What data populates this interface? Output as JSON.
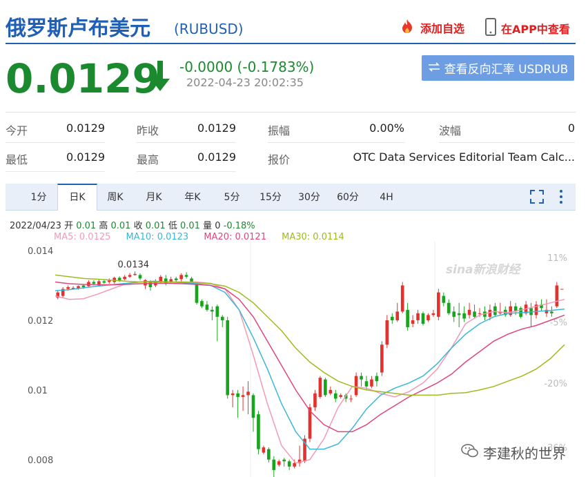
{
  "header": {
    "title": "俄罗斯卢布美元",
    "code": "(RUBUSD)",
    "add_watchlist": "添加自选",
    "view_in_app": "在APP中查看"
  },
  "quote": {
    "price": "0.0129",
    "change": "-0.0000 (-0.1783%)",
    "datetime": "2022-04-23 20:02:35",
    "reverse_button": "查看反向汇率 USDRUB",
    "down_color": "#1b8a2e"
  },
  "stats": {
    "open_label": "今开",
    "open": "0.0129",
    "prev_close_label": "昨收",
    "prev_close": "0.0129",
    "amplitude_label": "振幅",
    "amplitude": "0.00%",
    "wave_label": "波幅",
    "wave": "0",
    "low_label": "最低",
    "low": "0.0129",
    "high_label": "最高",
    "high": "0.0129",
    "quote_label": "报价",
    "quote_source": "OTC Data Services Editorial Team Calc..."
  },
  "tabs": [
    "1分",
    "日K",
    "周K",
    "月K",
    "年K",
    "5分",
    "15分",
    "30分",
    "60分",
    "4H"
  ],
  "active_tab": "日K",
  "info": {
    "date": "2022/04/23",
    "open_label": "开",
    "open": "0.01",
    "high_label": "高",
    "high": "0.01",
    "close_label": "收",
    "close": "0.01",
    "low_label": "低",
    "low": "0.01",
    "vol_label": "量",
    "vol": "0",
    "pct": "-0.18%"
  },
  "ma": {
    "ma5": "MA5: 0.0125",
    "ma10": "MA10: 0.0123",
    "ma20": "MA20: 0.0121",
    "ma30": "MA30: 0.0114",
    "ma5_color": "#f29ab4",
    "ma10_color": "#3ab7d6",
    "ma20_color": "#e0457b",
    "ma30_color": "#9dbb1e"
  },
  "watermarks": {
    "sina": "sina新浪财经",
    "wechat": "李建秋的世界"
  },
  "chart_data": {
    "type": "candlestick",
    "title": "",
    "ylim": [
      0.0075,
      0.0141
    ],
    "y_ticks": [
      "0.014",
      "0.012",
      "0.01",
      "0.008"
    ],
    "y_tick_values": [
      0.014,
      0.012,
      0.01,
      0.008
    ],
    "pct_ticks": [
      "11%",
      "-5%",
      "-20%",
      "-36%"
    ],
    "pct_tick_values": [
      0.0138,
      0.01195,
      0.0102,
      0.00835
    ],
    "peak_label": "0.0134",
    "peak_value": 0.0134,
    "peak_index": 15,
    "up_color": "#e3322e",
    "down_color": "#18a51d",
    "candles": [
      {
        "o": 0.01265,
        "c": 0.0128,
        "h": 0.01285,
        "l": 0.0126
      },
      {
        "o": 0.0127,
        "c": 0.0129,
        "h": 0.01295,
        "l": 0.01265
      },
      {
        "o": 0.0129,
        "c": 0.01295,
        "h": 0.013,
        "l": 0.01285
      },
      {
        "o": 0.0129,
        "c": 0.01293,
        "h": 0.01298,
        "l": 0.01288
      },
      {
        "o": 0.01292,
        "c": 0.01298,
        "h": 0.013,
        "l": 0.01288
      },
      {
        "o": 0.013,
        "c": 0.01295,
        "h": 0.01302,
        "l": 0.0129
      },
      {
        "o": 0.01298,
        "c": 0.0131,
        "h": 0.01315,
        "l": 0.01295
      },
      {
        "o": 0.0131,
        "c": 0.01305,
        "h": 0.01315,
        "l": 0.013
      },
      {
        "o": 0.013,
        "c": 0.01312,
        "h": 0.01318,
        "l": 0.01298
      },
      {
        "o": 0.01312,
        "c": 0.01308,
        "h": 0.01318,
        "l": 0.01305
      },
      {
        "o": 0.0131,
        "c": 0.01314,
        "h": 0.0132,
        "l": 0.01305
      },
      {
        "o": 0.0131,
        "c": 0.01322,
        "h": 0.01325,
        "l": 0.01305
      },
      {
        "o": 0.01322,
        "c": 0.01315,
        "h": 0.01326,
        "l": 0.0131
      },
      {
        "o": 0.01318,
        "c": 0.01325,
        "h": 0.0133,
        "l": 0.01315
      },
      {
        "o": 0.01325,
        "c": 0.0133,
        "h": 0.01336,
        "l": 0.01322
      },
      {
        "o": 0.0133,
        "c": 0.01333,
        "h": 0.0134,
        "l": 0.01328
      },
      {
        "o": 0.0133,
        "c": 0.0132,
        "h": 0.01335,
        "l": 0.01315
      },
      {
        "o": 0.013,
        "c": 0.01315,
        "h": 0.01318,
        "l": 0.0129
      },
      {
        "o": 0.0131,
        "c": 0.01295,
        "h": 0.01315,
        "l": 0.01285
      },
      {
        "o": 0.013,
        "c": 0.0131,
        "h": 0.01318,
        "l": 0.01295
      },
      {
        "o": 0.0131,
        "c": 0.01325,
        "h": 0.0133,
        "l": 0.01305
      },
      {
        "o": 0.0132,
        "c": 0.01305,
        "h": 0.0133,
        "l": 0.013
      },
      {
        "o": 0.0131,
        "c": 0.01318,
        "h": 0.01325,
        "l": 0.01305
      },
      {
        "o": 0.0132,
        "c": 0.01315,
        "h": 0.01325,
        "l": 0.01308
      },
      {
        "o": 0.01318,
        "c": 0.0133,
        "h": 0.01335,
        "l": 0.01312
      },
      {
        "o": 0.0133,
        "c": 0.01325,
        "h": 0.01338,
        "l": 0.0132
      },
      {
        "o": 0.0132,
        "c": 0.0131,
        "h": 0.01325,
        "l": 0.01305
      },
      {
        "o": 0.01305,
        "c": 0.0125,
        "h": 0.0131,
        "l": 0.01245
      },
      {
        "o": 0.01255,
        "c": 0.0124,
        "h": 0.0126,
        "l": 0.01235
      },
      {
        "o": 0.01245,
        "c": 0.0123,
        "h": 0.01255,
        "l": 0.01225
      },
      {
        "o": 0.0123,
        "c": 0.01225,
        "h": 0.0124,
        "l": 0.012
      },
      {
        "o": 0.0124,
        "c": 0.0121,
        "h": 0.01245,
        "l": 0.0114
      },
      {
        "o": 0.0121,
        "c": 0.012,
        "h": 0.01215,
        "l": 0.0118
      },
      {
        "o": 0.012,
        "c": 0.00985,
        "h": 0.0121,
        "l": 0.00975
      },
      {
        "o": 0.00985,
        "c": 0.0099,
        "h": 0.01,
        "l": 0.0095
      },
      {
        "o": 0.0099,
        "c": 0.0098,
        "h": 0.01,
        "l": 0.0092
      },
      {
        "o": 0.0098,
        "c": 0.00985,
        "h": 0.0101,
        "l": 0.0094
      },
      {
        "o": 0.00985,
        "c": 0.00995,
        "h": 0.01025,
        "l": 0.0093
      },
      {
        "o": 0.00985,
        "c": 0.0092,
        "h": 0.0099,
        "l": 0.0088
      },
      {
        "o": 0.0093,
        "c": 0.0083,
        "h": 0.0094,
        "l": 0.00815
      },
      {
        "o": 0.0082,
        "c": 0.00835,
        "h": 0.0084,
        "l": 0.00815
      },
      {
        "o": 0.0083,
        "c": 0.008,
        "h": 0.00835,
        "l": 0.00792
      },
      {
        "o": 0.008,
        "c": 0.0077,
        "h": 0.0081,
        "l": 0.0075
      },
      {
        "o": 0.00785,
        "c": 0.00795,
        "h": 0.008,
        "l": 0.0078
      },
      {
        "o": 0.008,
        "c": 0.00795,
        "h": 0.00805,
        "l": 0.0078
      },
      {
        "o": 0.00795,
        "c": 0.0078,
        "h": 0.008,
        "l": 0.0077
      },
      {
        "o": 0.0078,
        "c": 0.0079,
        "h": 0.008,
        "l": 0.00775
      },
      {
        "o": 0.0079,
        "c": 0.008,
        "h": 0.0084,
        "l": 0.0078
      },
      {
        "o": 0.00795,
        "c": 0.0086,
        "h": 0.0087,
        "l": 0.0079
      },
      {
        "o": 0.0086,
        "c": 0.0095,
        "h": 0.0096,
        "l": 0.0085
      },
      {
        "o": 0.0095,
        "c": 0.0099,
        "h": 0.01,
        "l": 0.0094
      },
      {
        "o": 0.0098,
        "c": 0.01035,
        "h": 0.0104,
        "l": 0.00975
      },
      {
        "o": 0.0103,
        "c": 0.00985,
        "h": 0.01035,
        "l": 0.0098
      },
      {
        "o": 0.0099,
        "c": 0.01,
        "h": 0.0101,
        "l": 0.00985
      },
      {
        "o": 0.0099,
        "c": 0.00975,
        "h": 0.01,
        "l": 0.00965
      },
      {
        "o": 0.0098,
        "c": 0.00985,
        "h": 0.0099,
        "l": 0.00975
      },
      {
        "o": 0.00985,
        "c": 0.00975,
        "h": 0.0099,
        "l": 0.00965
      },
      {
        "o": 0.00975,
        "c": 0.00975,
        "h": 0.00985,
        "l": 0.00965
      },
      {
        "o": 0.00985,
        "c": 0.0104,
        "h": 0.0105,
        "l": 0.0098
      },
      {
        "o": 0.0104,
        "c": 0.0103,
        "h": 0.0105,
        "l": 0.0101
      },
      {
        "o": 0.01025,
        "c": 0.0101,
        "h": 0.0104,
        "l": 0.01
      },
      {
        "o": 0.0101,
        "c": 0.0103,
        "h": 0.0104,
        "l": 0.01005
      },
      {
        "o": 0.0104,
        "c": 0.01025,
        "h": 0.0105,
        "l": 0.0101
      },
      {
        "o": 0.0105,
        "c": 0.0113,
        "h": 0.0114,
        "l": 0.0104
      },
      {
        "o": 0.0113,
        "c": 0.012,
        "h": 0.01215,
        "l": 0.0112
      },
      {
        "o": 0.0121,
        "c": 0.012,
        "h": 0.0122,
        "l": 0.0119
      },
      {
        "o": 0.012,
        "c": 0.01225,
        "h": 0.0125,
        "l": 0.01195
      },
      {
        "o": 0.01225,
        "c": 0.013,
        "h": 0.0131,
        "l": 0.0122
      },
      {
        "o": 0.0123,
        "c": 0.0118,
        "h": 0.0125,
        "l": 0.0117
      },
      {
        "o": 0.0119,
        "c": 0.012,
        "h": 0.01215,
        "l": 0.0118
      },
      {
        "o": 0.012,
        "c": 0.0122,
        "h": 0.0123,
        "l": 0.0119
      },
      {
        "o": 0.0122,
        "c": 0.0119,
        "h": 0.01225,
        "l": 0.01185
      },
      {
        "o": 0.012,
        "c": 0.01215,
        "h": 0.0122,
        "l": 0.01195
      },
      {
        "o": 0.01215,
        "c": 0.0122,
        "h": 0.0123,
        "l": 0.0121
      },
      {
        "o": 0.0121,
        "c": 0.0128,
        "h": 0.0129,
        "l": 0.012
      },
      {
        "o": 0.0127,
        "c": 0.0125,
        "h": 0.0128,
        "l": 0.0124
      },
      {
        "o": 0.0125,
        "c": 0.0122,
        "h": 0.0126,
        "l": 0.01215
      },
      {
        "o": 0.01225,
        "c": 0.0121,
        "h": 0.0124,
        "l": 0.01195
      },
      {
        "o": 0.0122,
        "c": 0.01215,
        "h": 0.0125,
        "l": 0.0118
      },
      {
        "o": 0.0122,
        "c": 0.01205,
        "h": 0.0124,
        "l": 0.01195
      },
      {
        "o": 0.01215,
        "c": 0.0123,
        "h": 0.0125,
        "l": 0.01205
      },
      {
        "o": 0.01225,
        "c": 0.0121,
        "h": 0.01245,
        "l": 0.01205
      },
      {
        "o": 0.0122,
        "c": 0.0122,
        "h": 0.01235,
        "l": 0.0121
      },
      {
        "o": 0.01225,
        "c": 0.0121,
        "h": 0.0124,
        "l": 0.012
      },
      {
        "o": 0.0121,
        "c": 0.0123,
        "h": 0.01245,
        "l": 0.012
      },
      {
        "o": 0.0124,
        "c": 0.01215,
        "h": 0.0125,
        "l": 0.0121
      },
      {
        "o": 0.0122,
        "c": 0.01225,
        "h": 0.0125,
        "l": 0.01215
      },
      {
        "o": 0.0123,
        "c": 0.01215,
        "h": 0.0124,
        "l": 0.0121
      },
      {
        "o": 0.01215,
        "c": 0.0124,
        "h": 0.01255,
        "l": 0.0121
      },
      {
        "o": 0.0124,
        "c": 0.01225,
        "h": 0.0125,
        "l": 0.01215
      },
      {
        "o": 0.01235,
        "c": 0.0121,
        "h": 0.0124,
        "l": 0.01205
      },
      {
        "o": 0.0122,
        "c": 0.01245,
        "h": 0.01255,
        "l": 0.01215
      },
      {
        "o": 0.01235,
        "c": 0.01215,
        "h": 0.0125,
        "l": 0.0118
      },
      {
        "o": 0.01215,
        "c": 0.01245,
        "h": 0.01255,
        "l": 0.01205
      },
      {
        "o": 0.01245,
        "c": 0.01235,
        "h": 0.0126,
        "l": 0.01225
      },
      {
        "o": 0.0122,
        "c": 0.0123,
        "h": 0.0126,
        "l": 0.0121
      },
      {
        "o": 0.01225,
        "c": 0.0122,
        "h": 0.0124,
        "l": 0.0121
      },
      {
        "o": 0.0124,
        "c": 0.013,
        "h": 0.0131,
        "l": 0.01235
      },
      {
        "o": 0.0129,
        "c": 0.0129,
        "h": 0.0129,
        "l": 0.0129
      }
    ],
    "ma_series": [
      {
        "name": "MA5",
        "values": [
          0.0127,
          0.0126,
          0.01262,
          0.01275,
          0.0129,
          0.01305,
          0.0131,
          0.0131,
          0.0131,
          0.0131,
          0.0131,
          0.01306,
          0.0129,
          0.0123,
          0.011,
          0.0096,
          0.0084,
          0.0079,
          0.008,
          0.0086,
          0.0095,
          0.0101,
          0.01005,
          0.0099,
          0.0098,
          0.00995,
          0.0102,
          0.0106,
          0.0112,
          0.0119,
          0.01215,
          0.01225,
          0.01222,
          0.0123,
          0.0124,
          0.0125,
          0.0126
        ]
      },
      {
        "name": "MA10",
        "values": [
          0.01285,
          0.01288,
          0.01293,
          0.01298,
          0.01302,
          0.01306,
          0.0131,
          0.01312,
          0.0131,
          0.01308,
          0.01305,
          0.013,
          0.0128,
          0.0123,
          0.0115,
          0.0106,
          0.0096,
          0.0088,
          0.0083,
          0.0083,
          0.00845,
          0.0089,
          0.00945,
          0.00985,
          0.01005,
          0.0102,
          0.0104,
          0.01075,
          0.0112,
          0.0116,
          0.0119,
          0.0121,
          0.0122,
          0.01222,
          0.01225,
          0.01228,
          0.01232
        ]
      },
      {
        "name": "MA20",
        "values": [
          0.0131,
          0.01305,
          0.01303,
          0.01302,
          0.01302,
          0.01303,
          0.01305,
          0.01306,
          0.01306,
          0.01305,
          0.01303,
          0.013,
          0.0129,
          0.0126,
          0.0121,
          0.0114,
          0.0107,
          0.01,
          0.0094,
          0.009,
          0.0088,
          0.0088,
          0.009,
          0.0093,
          0.00955,
          0.0098,
          0.01,
          0.0102,
          0.01045,
          0.0108,
          0.0111,
          0.0114,
          0.0116,
          0.01175,
          0.01185,
          0.012,
          0.01215
        ]
      },
      {
        "name": "MA30",
        "values": [
          0.0133,
          0.01325,
          0.0132,
          0.01318,
          0.01315,
          0.01312,
          0.0131,
          0.0131,
          0.0131,
          0.0131,
          0.01308,
          0.01305,
          0.01298,
          0.0128,
          0.0125,
          0.0121,
          0.0117,
          0.0112,
          0.0108,
          0.0105,
          0.01025,
          0.0101,
          0.01,
          0.00995,
          0.0099,
          0.00985,
          0.00985,
          0.00985,
          0.0099,
          0.00992,
          0.01,
          0.0101,
          0.01025,
          0.0104,
          0.0106,
          0.0109,
          0.0113
        ]
      }
    ]
  }
}
